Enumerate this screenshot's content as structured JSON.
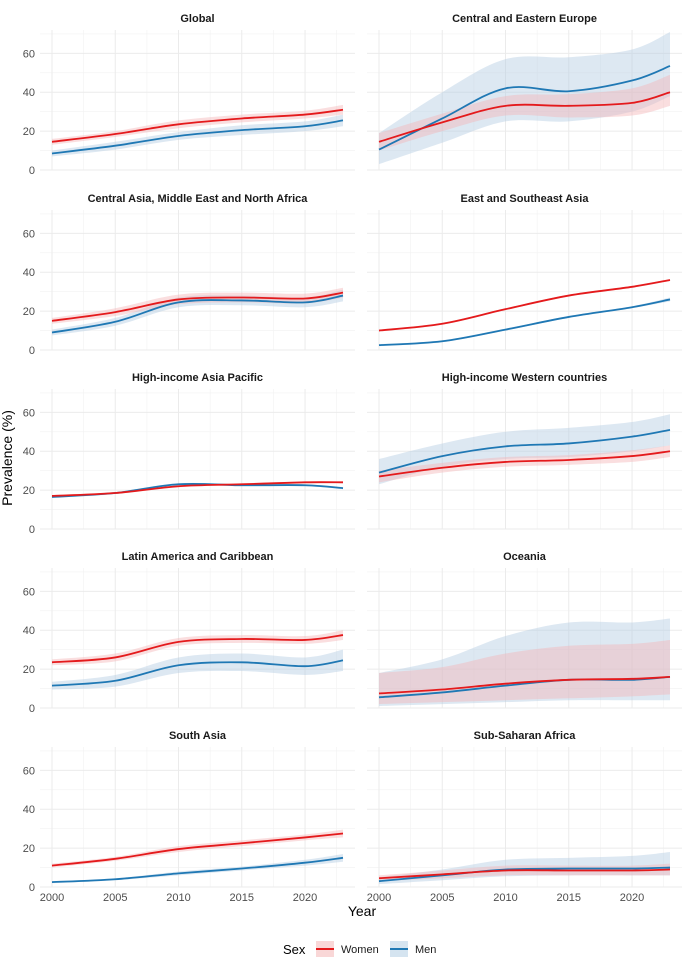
{
  "chart_data": {
    "type": "line",
    "layout": "facet-grid 5x2",
    "xlabel": "Year",
    "ylabel": "Prevalence (%)",
    "xlim": [
      2000,
      2023
    ],
    "ylim": [
      0,
      72
    ],
    "x_ticks": [
      2000,
      2005,
      2010,
      2015,
      2020
    ],
    "x_tick_labels": [
      "2000",
      "2005",
      "2010",
      "2015",
      "2020"
    ],
    "y_ticks": [
      0,
      20,
      40,
      60
    ],
    "y_tick_labels": [
      "0",
      "20",
      "40",
      "60"
    ],
    "legend": {
      "title": "Sex",
      "position": "bottom",
      "entries": [
        {
          "label": "Women",
          "color": "#e41a1c",
          "fill": "#f4b6b7"
        },
        {
          "label": "Men",
          "color": "#1f78b4",
          "fill": "#b3cde3"
        }
      ]
    },
    "x": [
      2000,
      2005,
      2010,
      2015,
      2020,
      2023
    ],
    "panels": [
      {
        "title": "Global",
        "series": [
          {
            "name": "Women",
            "values": [
              14.5,
              18.5,
              23.5,
              26.5,
              28.5,
              31
            ],
            "lower": [
              13,
              17,
              21.5,
              24.5,
              26.5,
              28.5
            ],
            "upper": [
              16,
              20,
              25.5,
              28.5,
              30.5,
              33.5
            ]
          },
          {
            "name": "Men",
            "values": [
              8.5,
              12.5,
              17.5,
              20.5,
              22.5,
              25.5
            ],
            "lower": [
              7,
              10.5,
              15.5,
              18,
              20,
              22.5
            ],
            "upper": [
              10,
              14.5,
              19.5,
              23,
              25,
              28.5
            ]
          }
        ]
      },
      {
        "title": "Central and Eastern Europe",
        "series": [
          {
            "name": "Women",
            "values": [
              14.5,
              24.5,
              33,
              33,
              34.5,
              40
            ],
            "lower": [
              10,
              20,
              28,
              27,
              28,
              33
            ],
            "upper": [
              19,
              29,
              38,
              39,
              42,
              49
            ]
          },
          {
            "name": "Men",
            "values": [
              10.5,
              26.5,
              42,
              40.5,
              46,
              53.5
            ],
            "lower": [
              3,
              14,
              25,
              25,
              30,
              38
            ],
            "upper": [
              19,
              40,
              57,
              58,
              62,
              71
            ]
          }
        ]
      },
      {
        "title": "Central Asia, Middle East and North Africa",
        "series": [
          {
            "name": "Women",
            "values": [
              15,
              19.5,
              26,
              27,
              26.5,
              29.5
            ],
            "lower": [
              13.5,
              17.5,
              23.5,
              24.5,
              24,
              27
            ],
            "upper": [
              16.5,
              21.5,
              28.5,
              29.5,
              29,
              32
            ]
          },
          {
            "name": "Men",
            "values": [
              9,
              14.5,
              24.5,
              25.5,
              24.5,
              28
            ],
            "lower": [
              7.5,
              12.5,
              22,
              23,
              22,
              25
            ],
            "upper": [
              10.5,
              16.5,
              27,
              28,
              27,
              31
            ]
          }
        ]
      },
      {
        "title": "East and Southeast Asia",
        "series": [
          {
            "name": "Women",
            "values": [
              10,
              13.5,
              21,
              28,
              32.5,
              36
            ],
            "lower": [
              9.5,
              13,
              20.5,
              27.5,
              32,
              35.5
            ],
            "upper": [
              10.5,
              14,
              21.5,
              28.5,
              33,
              36.5
            ]
          },
          {
            "name": "Men",
            "values": [
              2.5,
              4.5,
              10.5,
              17,
              22,
              26
            ],
            "lower": [
              2,
              4,
              10,
              16.5,
              21.5,
              25
            ],
            "upper": [
              3,
              5,
              11,
              17.5,
              22.5,
              27
            ]
          }
        ]
      },
      {
        "title": "High-income Asia Pacific",
        "series": [
          {
            "name": "Women",
            "values": [
              17,
              18.5,
              22,
              23,
              24,
              24
            ],
            "lower": [
              16.5,
              18,
              21.5,
              22.5,
              23.5,
              23.5
            ],
            "upper": [
              17.5,
              19,
              22.5,
              23.5,
              24.5,
              24.5
            ]
          },
          {
            "name": "Men",
            "values": [
              16.5,
              18.5,
              23,
              22.5,
              22.5,
              21
            ],
            "lower": [
              16,
              18,
              22.5,
              22,
              22,
              20.5
            ],
            "upper": [
              17,
              19,
              23.5,
              23,
              23,
              21.5
            ]
          }
        ]
      },
      {
        "title": "High-income Western countries",
        "series": [
          {
            "name": "Women",
            "values": [
              27,
              31.5,
              34.5,
              35.5,
              37.5,
              40
            ],
            "lower": [
              24,
              29,
              32,
              33,
              34.5,
              37
            ],
            "upper": [
              30,
              34,
              37,
              38,
              40.5,
              43
            ]
          },
          {
            "name": "Men",
            "values": [
              29,
              37.5,
              42.5,
              44,
              47.5,
              51
            ],
            "lower": [
              23,
              32,
              36,
              37,
              40,
              43
            ],
            "upper": [
              36,
              44,
              50,
              52,
              55,
              59
            ]
          }
        ]
      },
      {
        "title": "Latin America and Caribbean",
        "series": [
          {
            "name": "Women",
            "values": [
              23.5,
              26,
              34,
              35.5,
              35,
              37.5
            ],
            "lower": [
              22,
              24,
              32,
              33.5,
              33,
              35
            ],
            "upper": [
              25,
              28,
              36,
              37.5,
              37,
              40
            ]
          },
          {
            "name": "Men",
            "values": [
              11.5,
              14,
              22,
              23.5,
              21.5,
              24.5
            ],
            "lower": [
              9.5,
              11,
              18,
              19,
              17,
              19
            ],
            "upper": [
              13.5,
              17,
              26,
              28,
              26,
              30
            ]
          }
        ]
      },
      {
        "title": "Oceania",
        "series": [
          {
            "name": "Women",
            "values": [
              7.5,
              9.5,
              12.5,
              14.5,
              15,
              16
            ],
            "lower": [
              2,
              3,
              4,
              5,
              6,
              7
            ],
            "upper": [
              18,
              21,
              28,
              32,
              33,
              35
            ]
          },
          {
            "name": "Men",
            "values": [
              5.5,
              8,
              11.5,
              14.5,
              14.5,
              16
            ],
            "lower": [
              1,
              2,
              3,
              4,
              4,
              4
            ],
            "upper": [
              18,
              25,
              37,
              44,
              44,
              46
            ]
          }
        ]
      },
      {
        "title": "South Asia",
        "series": [
          {
            "name": "Women",
            "values": [
              11,
              14.5,
              19.5,
              22.5,
              25.5,
              27.5
            ],
            "lower": [
              10,
              13.5,
              18,
              21,
              24,
              25.5
            ],
            "upper": [
              12,
              15.5,
              21,
              24,
              27,
              29.5
            ]
          },
          {
            "name": "Men",
            "values": [
              2.5,
              4,
              7,
              9.5,
              12.5,
              15
            ],
            "lower": [
              2,
              3.5,
              6,
              8.5,
              11,
              13
            ],
            "upper": [
              3,
              4.5,
              8,
              10.5,
              14,
              17
            ]
          }
        ]
      },
      {
        "title": "Sub-Saharan Africa",
        "series": [
          {
            "name": "Women",
            "values": [
              4.5,
              6.5,
              8.5,
              8.5,
              8.5,
              9
            ],
            "lower": [
              3,
              4.5,
              6,
              6,
              6,
              6
            ],
            "upper": [
              6,
              8.5,
              11,
              11,
              11,
              12
            ]
          },
          {
            "name": "Men",
            "values": [
              3,
              6,
              9,
              9.5,
              9.5,
              10
            ],
            "lower": [
              1.5,
              3.5,
              5.5,
              6,
              6,
              6
            ],
            "upper": [
              5,
              9,
              14,
              15,
              16,
              18
            ]
          }
        ]
      }
    ]
  }
}
